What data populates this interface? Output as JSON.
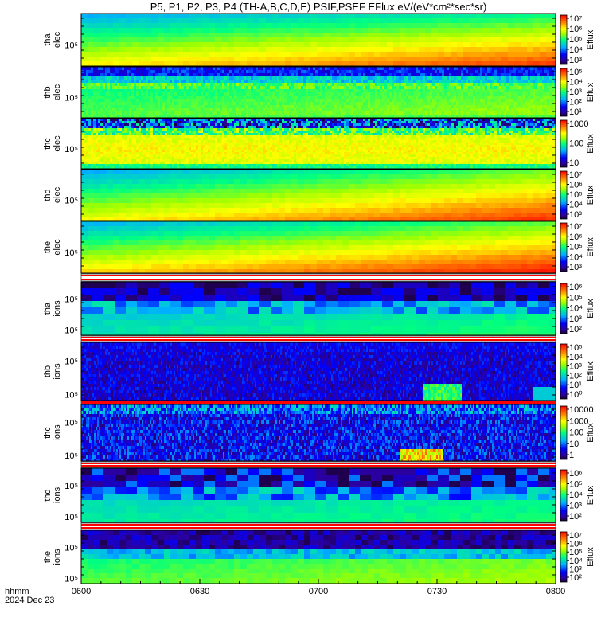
{
  "chart_data": {
    "type": "heatmap",
    "title": "P5, P1, P2, P3, P4 (TH-A,B,C,D,E) PSIF,PSEF EFlux eV/(eV*cm²*sec*sr)",
    "x_ticks": [
      "0600",
      "0630",
      "0700",
      "0730",
      "0800"
    ],
    "x_range": [
      "0600",
      "0800"
    ],
    "x_label_unit": "hhmm",
    "x_label_date": "2024 Dec 23",
    "colorbar_label": "Eflux",
    "panels": [
      {
        "name": "tha elec",
        "probe": "tha",
        "species": "elec",
        "y_ticks": [
          "10⁵"
        ],
        "colorbar_ticks": [
          "10⁷",
          "10⁶",
          "10⁵",
          "10⁴",
          "10³"
        ],
        "pattern": "elec_smooth"
      },
      {
        "name": "thb elec",
        "probe": "thb",
        "species": "elec",
        "y_ticks": [
          "10⁵"
        ],
        "colorbar_ticks": [
          "10⁵",
          "10⁴",
          "10³",
          "10²",
          "10¹"
        ],
        "pattern": "elec_noisy"
      },
      {
        "name": "thc elec",
        "probe": "thc",
        "species": "elec",
        "y_ticks": [
          "10⁵"
        ],
        "colorbar_ticks": [
          "1000",
          "100",
          "10"
        ],
        "pattern": "elec_noisy2"
      },
      {
        "name": "thd elec",
        "probe": "thd",
        "species": "elec",
        "y_ticks": [
          "10⁵"
        ],
        "colorbar_ticks": [
          "10⁷",
          "10⁶",
          "10⁵",
          "10⁴",
          "10³"
        ],
        "pattern": "elec_smooth2"
      },
      {
        "name": "the elec",
        "probe": "the",
        "species": "elec",
        "y_ticks": [
          "10⁵"
        ],
        "colorbar_ticks": [
          "10⁷",
          "10⁶",
          "10⁵",
          "10⁴",
          "10³"
        ],
        "pattern": "elec_smooth3"
      },
      {
        "name": "tha ions",
        "probe": "tha",
        "species": "ions",
        "y_ticks": [
          "10⁵",
          "10⁵"
        ],
        "colorbar_ticks": [
          "10⁶",
          "10⁵",
          "10⁴",
          "10³",
          "10²"
        ],
        "pattern": "ion_blocky"
      },
      {
        "name": "thb ions",
        "probe": "thb",
        "species": "ions",
        "y_ticks": [
          "10⁵",
          "10⁵"
        ],
        "colorbar_ticks": [
          "10⁵",
          "10⁴",
          "10³",
          "10²",
          "10¹",
          "10⁰"
        ],
        "pattern": "ion_noisy"
      },
      {
        "name": "thc ions",
        "probe": "thc",
        "species": "ions",
        "y_ticks": [
          "10⁵",
          "10⁵"
        ],
        "colorbar_ticks": [
          "10000",
          "1000",
          "100",
          "10",
          "1"
        ],
        "pattern": "ion_noisy2"
      },
      {
        "name": "thd ions",
        "probe": "thd",
        "species": "ions",
        "y_ticks": [
          "10⁵",
          "10⁵"
        ],
        "colorbar_ticks": [
          "10⁶",
          "10⁵",
          "10⁴",
          "10³",
          "10²"
        ],
        "pattern": "ion_blocky2"
      },
      {
        "name": "the ions",
        "probe": "the",
        "species": "ions",
        "y_ticks": [
          "10⁵",
          "10⁵"
        ],
        "colorbar_ticks": [
          "10⁷",
          "10⁶",
          "10⁵",
          "10⁴",
          "10³",
          "10²"
        ],
        "pattern": "ion_smooth"
      }
    ],
    "grid": false,
    "legend": "colorbar-right"
  }
}
